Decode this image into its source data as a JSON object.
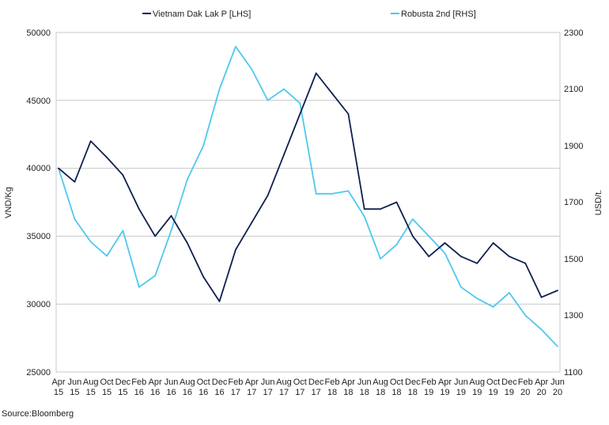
{
  "chart_data": {
    "type": "line",
    "title": "",
    "source": "Source:Bloomberg",
    "xlabel": "",
    "ylabel_left": "VND/Kg",
    "ylabel_right": "USD/t.",
    "ylim_left": [
      25000,
      50000
    ],
    "ylim_right": [
      1100,
      2300
    ],
    "yticks_left": [
      "25000",
      "30000",
      "35000",
      "40000",
      "45000",
      "50000"
    ],
    "yticks_right": [
      "1100",
      "1300",
      "1500",
      "1700",
      "1900",
      "2100",
      "2300"
    ],
    "grid": "horizontal",
    "legend_position": "top-center",
    "x_ticks": [
      {
        "month": "Apr",
        "year": "15"
      },
      {
        "month": "Jun",
        "year": "15"
      },
      {
        "month": "Aug",
        "year": "15"
      },
      {
        "month": "Oct",
        "year": "15"
      },
      {
        "month": "Dec",
        "year": "15"
      },
      {
        "month": "Feb",
        "year": "16"
      },
      {
        "month": "Apr",
        "year": "16"
      },
      {
        "month": "Jun",
        "year": "16"
      },
      {
        "month": "Aug",
        "year": "16"
      },
      {
        "month": "Oct",
        "year": "16"
      },
      {
        "month": "Dec",
        "year": "16"
      },
      {
        "month": "Feb",
        "year": "17"
      },
      {
        "month": "Apr",
        "year": "17"
      },
      {
        "month": "Jun",
        "year": "17"
      },
      {
        "month": "Aug",
        "year": "17"
      },
      {
        "month": "Oct",
        "year": "17"
      },
      {
        "month": "Dec",
        "year": "17"
      },
      {
        "month": "Feb",
        "year": "18"
      },
      {
        "month": "Apr",
        "year": "18"
      },
      {
        "month": "Jun",
        "year": "18"
      },
      {
        "month": "Aug",
        "year": "18"
      },
      {
        "month": "Oct",
        "year": "18"
      },
      {
        "month": "Dec",
        "year": "18"
      },
      {
        "month": "Feb",
        "year": "19"
      },
      {
        "month": "Apr",
        "year": "19"
      },
      {
        "month": "Jun",
        "year": "19"
      },
      {
        "month": "Aug",
        "year": "19"
      },
      {
        "month": "Oct",
        "year": "19"
      },
      {
        "month": "Dec",
        "year": "19"
      },
      {
        "month": "Feb",
        "year": "20"
      },
      {
        "month": "Apr",
        "year": "20"
      },
      {
        "month": "Jun",
        "year": "20"
      }
    ],
    "x": [
      "Apr-15",
      "Jun-15",
      "Aug-15",
      "Oct-15",
      "Dec-15",
      "Feb-16",
      "Apr-16",
      "Jun-16",
      "Aug-16",
      "Oct-16",
      "Dec-16",
      "Feb-17",
      "Apr-17",
      "Jun-17",
      "Aug-17",
      "Oct-17",
      "Dec-17",
      "Feb-18",
      "Apr-18",
      "Jun-18",
      "Aug-18",
      "Oct-18",
      "Dec-18",
      "Feb-19",
      "Apr-19",
      "Jun-19",
      "Aug-19",
      "Oct-19",
      "Dec-19",
      "Feb-20",
      "Apr-20",
      "Jun-20"
    ],
    "series": [
      {
        "name": "Vietnam Dak Lak P [LHS]",
        "axis": "left",
        "color": "#0d1f4f",
        "values": [
          40000,
          39000,
          42000,
          40800,
          39500,
          37000,
          35000,
          36500,
          34500,
          32000,
          30200,
          34000,
          36000,
          38000,
          41000,
          44000,
          47000,
          45500,
          44000,
          37000,
          37000,
          37500,
          35000,
          33500,
          34500,
          33500,
          33000,
          34500,
          33500,
          33000,
          30500,
          31000
        ]
      },
      {
        "name": "Robusta 2nd [RHS]",
        "axis": "right",
        "color": "#4ec8ee",
        "values": [
          1820,
          1640,
          1560,
          1510,
          1600,
          1400,
          1440,
          1600,
          1780,
          1900,
          2100,
          2250,
          2170,
          2060,
          2100,
          2050,
          1730,
          1730,
          1740,
          1650,
          1500,
          1550,
          1640,
          1580,
          1520,
          1400,
          1360,
          1330,
          1380,
          1300,
          1250,
          1190
        ]
      }
    ]
  }
}
